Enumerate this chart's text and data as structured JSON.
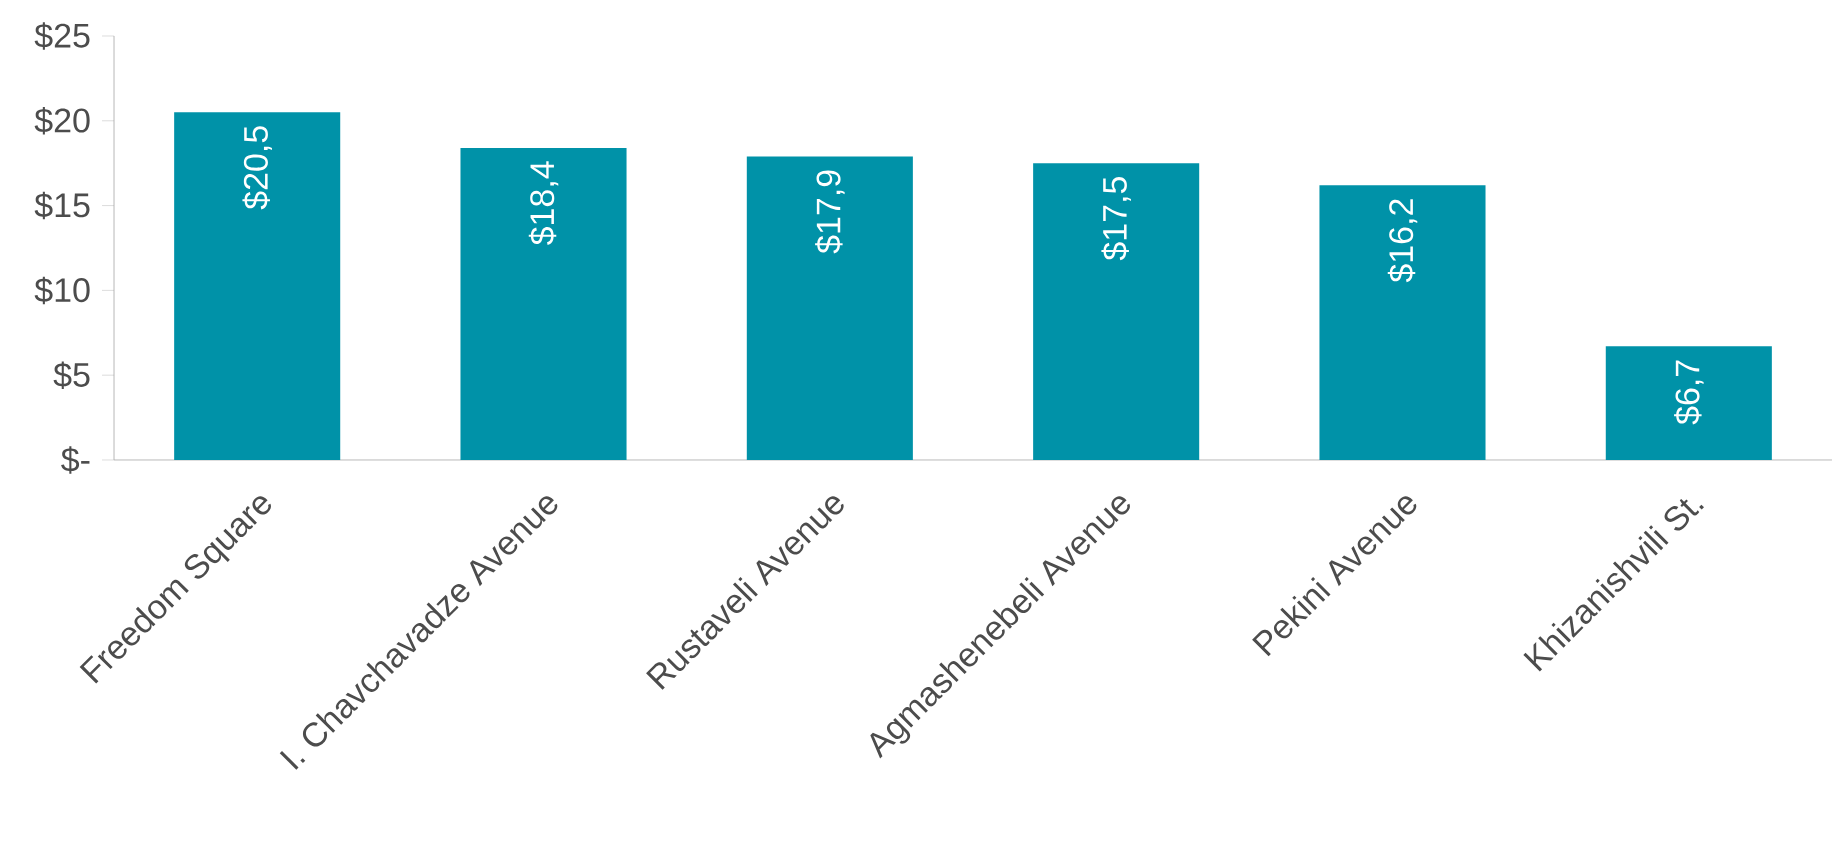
{
  "chart_data": {
    "type": "bar",
    "categories": [
      "Freedom Square",
      "I. Chavchavadze Avenue",
      "Rustaveli Avenue",
      "Agmashenebeli Avenue",
      "Pekini Avenue",
      "Khizanishvili St."
    ],
    "values": [
      20.5,
      18.4,
      17.9,
      17.5,
      16.2,
      6.7
    ],
    "value_labels": [
      "$20,5",
      "$18,4",
      "$17,9",
      "$17,5",
      "$16,2",
      "$6,7"
    ],
    "color": "#0092a8",
    "ylim": [
      0,
      25
    ],
    "yticks": [
      {
        "value": 0,
        "label": "$-"
      },
      {
        "value": 5,
        "label": "$5"
      },
      {
        "value": 10,
        "label": "$10"
      },
      {
        "value": 15,
        "label": "$15"
      },
      {
        "value": 20,
        "label": "$20"
      },
      {
        "value": 25,
        "label": "$25"
      }
    ],
    "grid": false
  }
}
